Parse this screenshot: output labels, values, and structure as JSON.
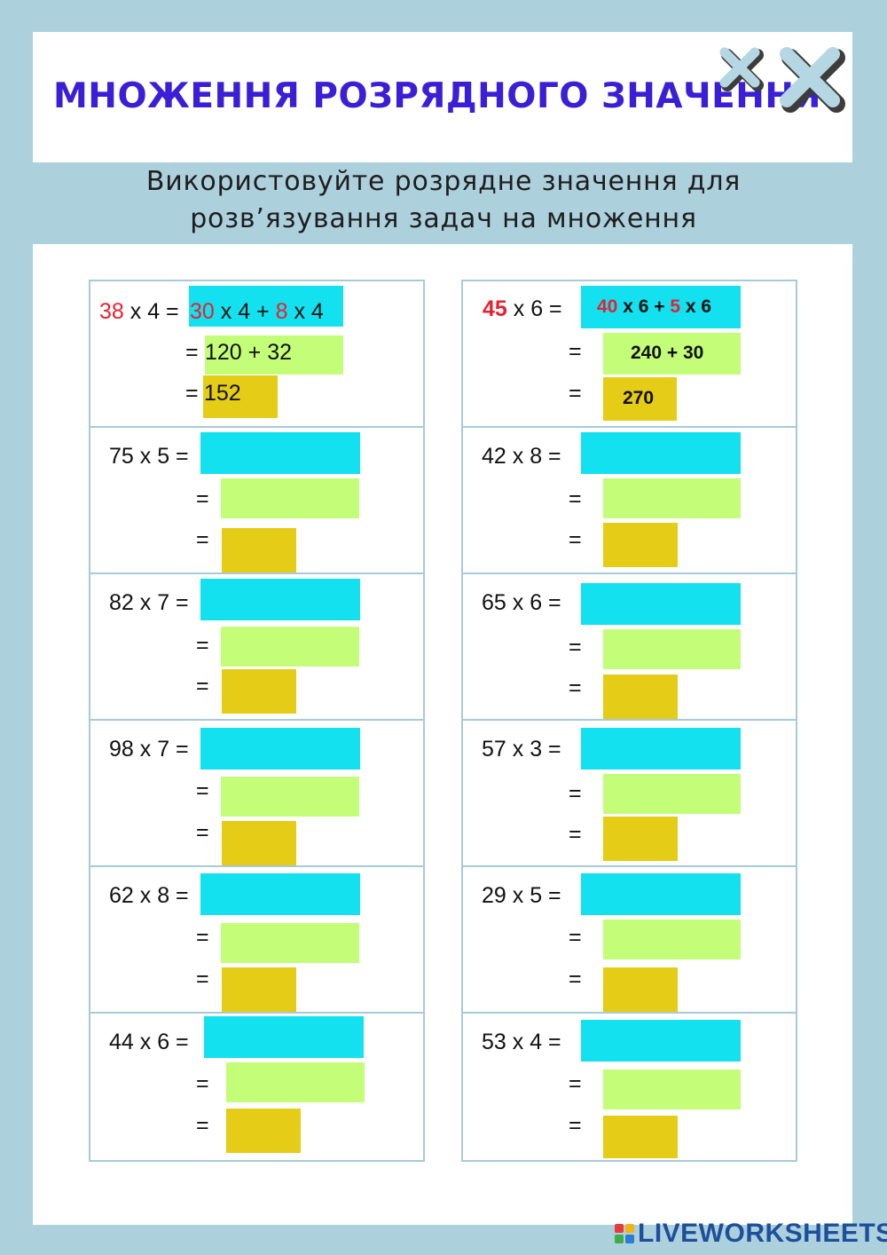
{
  "header": {
    "title": "МНОЖЕННЯ РОЗРЯДНОГО ЗНАЧЕННЯ",
    "subtitle_line1": "Використовуйте розрядне значення для",
    "subtitle_line2": "розв’язування задач на множення"
  },
  "colors": {
    "title": "#3a1fd6",
    "cyan_box": "#13e1ef",
    "lime_box": "#c4fe78",
    "gold_box": "#e4cc17",
    "highlight_red": "#e42230",
    "frame": "#add0dd"
  },
  "examples": {
    "left": {
      "first_factor": "38",
      "rest_of_problem": " x 4 =",
      "step1_tens": "30",
      "step1_mid": " x 4 + ",
      "step1_ones": "8",
      "step1_end": " x 4",
      "eq": "=",
      "step2": "120 + 32",
      "step3": "152"
    },
    "right": {
      "first_factor": "45",
      "rest_of_problem": " x 6  =",
      "step1_tens": "40",
      "step1_mid": " x 6 + ",
      "step1_ones": "5",
      "step1_end": " x 6",
      "eq": "=",
      "step2": "240 + 30",
      "step3": "270"
    }
  },
  "problems": {
    "left": [
      {
        "text": "75 x 5 =",
        "eq": "="
      },
      {
        "text": "82 x 7 =",
        "eq": "="
      },
      {
        "text": "98 x 7 =",
        "eq": "="
      },
      {
        "text": "62 x 8  =",
        "eq": "="
      },
      {
        "text": "44 x 6   =",
        "eq": "="
      }
    ],
    "right": [
      {
        "text": "42 x 8 =",
        "eq": "="
      },
      {
        "text": "65 x 6 =",
        "eq": "="
      },
      {
        "text": "57 x 3 =",
        "eq": "="
      },
      {
        "text": "29 x 5 =",
        "eq": "="
      },
      {
        "text": "53 x 4  =",
        "eq": "="
      }
    ]
  },
  "footer": {
    "brand": "LIVEWORKSHEETS",
    "logo_letters": "LIVE"
  }
}
